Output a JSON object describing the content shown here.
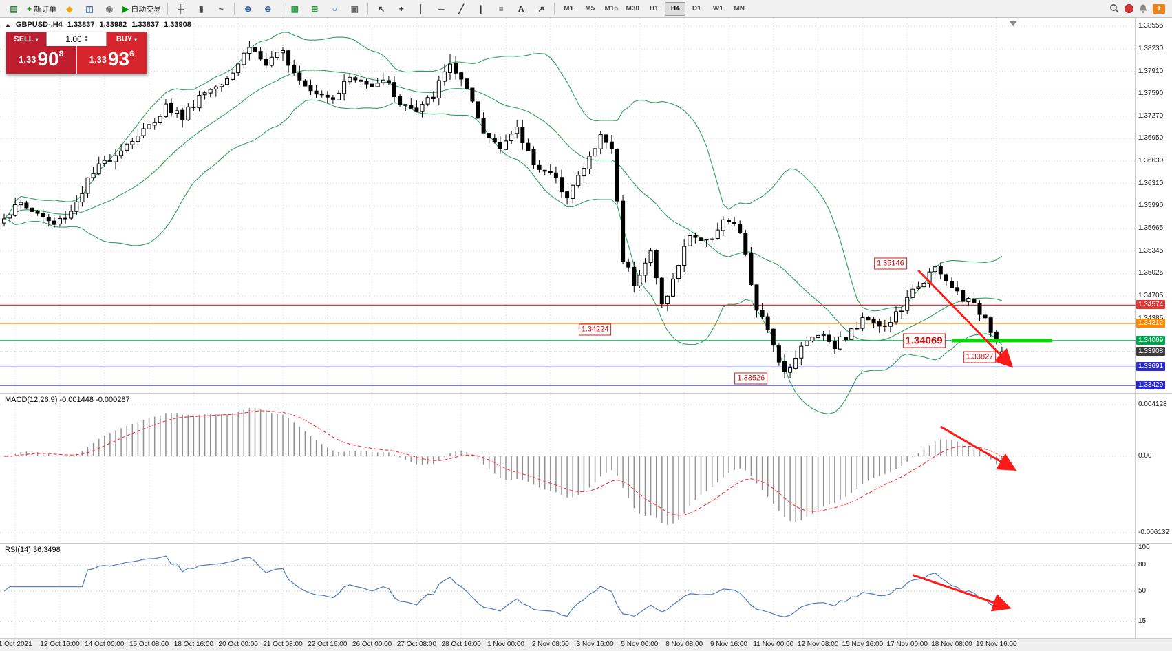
{
  "toolbar": {
    "groups": [
      {
        "name": "file",
        "buttons": [
          {
            "name": "new-chart",
            "glyph": "▤",
            "color": "#3a7d44"
          },
          {
            "name": "new-order",
            "glyph": "+",
            "color": "#00a000",
            "label": "新订单"
          },
          {
            "name": "metaeditor",
            "glyph": "◆",
            "color": "#eea500"
          },
          {
            "name": "depth-of-market",
            "glyph": "◫",
            "color": "#3a6ea5"
          },
          {
            "name": "mql5-community",
            "glyph": "◉",
            "color": "#777777"
          },
          {
            "name": "autotrading",
            "glyph": "▶",
            "color": "#00a000",
            "label": "自动交易"
          }
        ]
      },
      {
        "name": "chart-type",
        "buttons": [
          {
            "name": "bar-chart-mode",
            "glyph": "╫",
            "color": "#444444"
          },
          {
            "name": "candlestick-mode",
            "glyph": "▮",
            "color": "#444444"
          },
          {
            "name": "line-chart-mode",
            "glyph": "~",
            "color": "#444444"
          }
        ]
      },
      {
        "name": "zoom",
        "buttons": [
          {
            "name": "zoom-in",
            "glyph": "⊕",
            "color": "#2a5db0"
          },
          {
            "name": "zoom-out",
            "glyph": "⊖",
            "color": "#2a5db0"
          }
        ]
      },
      {
        "name": "windows",
        "buttons": [
          {
            "name": "tile-windows",
            "glyph": "▦",
            "color": "#2f9e44"
          },
          {
            "name": "indicators",
            "glyph": "⊞",
            "color": "#2f9e44"
          },
          {
            "name": "periods",
            "glyph": "○",
            "color": "#2a5db0"
          },
          {
            "name": "templates",
            "glyph": "▣",
            "color": "#666666"
          }
        ]
      },
      {
        "name": "draw",
        "buttons": [
          {
            "name": "cursor",
            "glyph": "↖",
            "color": "#333333"
          },
          {
            "name": "crosshair",
            "glyph": "+",
            "color": "#333333"
          },
          {
            "name": "vertical-line-tool",
            "glyph": "│",
            "color": "#333333"
          },
          {
            "name": "horizontal-line-tool",
            "glyph": "─",
            "color": "#333333"
          },
          {
            "name": "trendline-tool",
            "glyph": "╱",
            "color": "#333333"
          },
          {
            "name": "channel-tool",
            "glyph": "∥",
            "color": "#333333"
          },
          {
            "name": "fibonacci-tool",
            "glyph": "≡",
            "color": "#333333"
          },
          {
            "name": "text-tool",
            "glyph": "A",
            "color": "#333333"
          },
          {
            "name": "arrows-tool",
            "glyph": "↗",
            "color": "#333333"
          }
        ]
      }
    ],
    "timeframes": [
      {
        "label": "M1"
      },
      {
        "label": "M5"
      },
      {
        "label": "M15"
      },
      {
        "label": "M30"
      },
      {
        "label": "H1"
      },
      {
        "label": "H4",
        "active": true
      },
      {
        "label": "D1"
      },
      {
        "label": "W1"
      },
      {
        "label": "MN"
      }
    ],
    "notification_badge": "1"
  },
  "symbol_info": {
    "icon": "▲",
    "symbol": "GBPUSD-,H4",
    "open": "1.33837",
    "high": "1.33982",
    "low": "1.33837",
    "close": "1.33908"
  },
  "trade": {
    "sell_label": "SELL",
    "buy_label": "BUY",
    "volume": "1.00",
    "sell_price": {
      "prefix": "1.33",
      "big": "90",
      "sup": "8"
    },
    "buy_price": {
      "prefix": "1.33",
      "big": "93",
      "sup": "6"
    },
    "sell_color": "#bf1e2e",
    "buy_color": "#d6252d"
  },
  "chart_data": {
    "type": "candlestick",
    "symbol": "GBPUSD-",
    "timeframe": "H4",
    "bar_count": 180,
    "indicators": [
      "Bollinger Bands (20,2)",
      "MACD(12,26,9)",
      "RSI(14)"
    ],
    "colors": {
      "bollinger": "#2ca05a",
      "candle": "#000000",
      "macd_histogram": "#909090",
      "macd_signal": "#ff3030",
      "rsi_line": "#4d79bd",
      "trend_arrow": "#ff1a1a",
      "thick_level": "#00dc00"
    },
    "price_axis_labels": [
      {
        "text": "1.38555",
        "value": 1.38555
      },
      {
        "text": "1.38230",
        "value": 1.3823
      },
      {
        "text": "1.37910",
        "value": 1.3791
      },
      {
        "text": "1.37590",
        "value": 1.3759
      },
      {
        "text": "1.37270",
        "value": 1.3727
      },
      {
        "text": "1.36950",
        "value": 1.3695
      },
      {
        "text": "1.36630",
        "value": 1.3663
      },
      {
        "text": "1.36310",
        "value": 1.3631
      },
      {
        "text": "1.35990",
        "value": 1.3599
      },
      {
        "text": "1.35665",
        "value": 1.35665
      },
      {
        "text": "1.35345",
        "value": 1.35345
      },
      {
        "text": "1.35025",
        "value": 1.35025
      },
      {
        "text": "1.34705",
        "value": 1.34705
      },
      {
        "text": "1.34385",
        "value": 1.34385
      }
    ],
    "close_path_anchors": [
      [
        0,
        1.3585
      ],
      [
        3,
        1.3602
      ],
      [
        6,
        1.3588
      ],
      [
        9,
        1.3572
      ],
      [
        12,
        1.3592
      ],
      [
        15,
        1.3635
      ],
      [
        18,
        1.3662
      ],
      [
        22,
        1.3688
      ],
      [
        26,
        1.3712
      ],
      [
        29,
        1.3742
      ],
      [
        32,
        1.3726
      ],
      [
        35,
        1.3756
      ],
      [
        38,
        1.3772
      ],
      [
        41,
        1.3792
      ],
      [
        44,
        1.3828
      ],
      [
        47,
        1.38
      ],
      [
        50,
        1.3818
      ],
      [
        53,
        1.3782
      ],
      [
        56,
        1.3762
      ],
      [
        59,
        1.3756
      ],
      [
        62,
        1.3782
      ],
      [
        65,
        1.3772
      ],
      [
        68,
        1.3782
      ],
      [
        71,
        1.3747
      ],
      [
        74,
        1.3732
      ],
      [
        77,
        1.3757
      ],
      [
        80,
        1.3804
      ],
      [
        83,
        1.3762
      ],
      [
        86,
        1.3702
      ],
      [
        89,
        1.3687
      ],
      [
        92,
        1.3706
      ],
      [
        95,
        1.3662
      ],
      [
        98,
        1.3642
      ],
      [
        101,
        1.3617
      ],
      [
        104,
        1.3652
      ],
      [
        107,
        1.3698
      ],
      [
        109,
        1.3682
      ],
      [
        111,
        1.3525
      ],
      [
        113,
        1.3492
      ],
      [
        116,
        1.3532
      ],
      [
        118,
        1.3458
      ],
      [
        120,
        1.3492
      ],
      [
        123,
        1.356
      ],
      [
        126,
        1.3546
      ],
      [
        129,
        1.358
      ],
      [
        132,
        1.3562
      ],
      [
        135,
        1.3452
      ],
      [
        138,
        1.3402
      ],
      [
        140,
        1.3362
      ],
      [
        143,
        1.3396
      ],
      [
        146,
        1.342
      ],
      [
        149,
        1.3402
      ],
      [
        152,
        1.342
      ],
      [
        155,
        1.3442
      ],
      [
        158,
        1.3426
      ],
      [
        161,
        1.3452
      ],
      [
        164,
        1.3487
      ],
      [
        167,
        1.3508
      ],
      [
        170,
        1.3482
      ],
      [
        173,
        1.3462
      ],
      [
        176,
        1.3442
      ],
      [
        178,
        1.3408
      ],
      [
        179,
        1.3391
      ]
    ],
    "candle_overrides": {
      "44": {
        "h": 1.38345
      },
      "80": {
        "h": 1.38155
      },
      "140": {
        "l": 1.33526
      },
      "167": {
        "h": 1.35146
      },
      "179": {
        "o": 1.33837,
        "h": 1.33982,
        "l": 1.33837,
        "c": 1.33908
      }
    },
    "hlines": [
      {
        "text": "1.34574",
        "value": 1.34574,
        "color": "#e63535"
      },
      {
        "text": "1.34312",
        "value": 1.34312,
        "color": "#ff8a00"
      },
      {
        "text": "1.34069",
        "value": 1.34069,
        "color": "#00a64f"
      },
      {
        "text": "1.33691",
        "value": 1.33691,
        "color": "#2b2bd0"
      },
      {
        "text": "1.33429",
        "value": 1.33429,
        "color": "#2b2bd0"
      }
    ],
    "current_price_tag": {
      "text": "1.33908",
      "value": 1.33908,
      "bg": "#3d3d3d"
    },
    "thick_segment": {
      "value": 1.34069,
      "bar1": 170,
      "bar2": 188,
      "color": "#00dc00"
    },
    "annotations": [
      {
        "text": "1.35146",
        "bar": 159,
        "price": 1.3517
      },
      {
        "text": "1.34224",
        "bar": 106,
        "price": 1.34224
      },
      {
        "text": "1.34069",
        "bar": 165,
        "price": 1.34069,
        "large": true
      },
      {
        "text": "1.33827",
        "bar": 175,
        "price": 1.33827
      },
      {
        "text": "1.33526",
        "bar": 134,
        "price": 1.33526
      }
    ],
    "trend_arrows": {
      "main": {
        "bar1": 164,
        "price1": 1.3507,
        "bar2": 180.5,
        "price2": 1.3372
      },
      "macd": {
        "bar1": 168,
        "frac1": 0.22,
        "bar2": 181,
        "frac2": 0.5
      },
      "rsi": {
        "bar1": 163,
        "frac1": 0.33,
        "bar2": 180,
        "frac2": 0.67
      }
    },
    "time_labels": [
      {
        "bar": 2,
        "text": "1 Oct 2021"
      },
      {
        "bar": 10,
        "text": "12 Oct 16:00"
      },
      {
        "bar": 18,
        "text": "14 Oct 00:00"
      },
      {
        "bar": 26,
        "text": "15 Oct 08:00"
      },
      {
        "bar": 34,
        "text": "18 Oct 16:00"
      },
      {
        "bar": 42,
        "text": "20 Oct 00:00"
      },
      {
        "bar": 50,
        "text": "21 Oct 08:00"
      },
      {
        "bar": 58,
        "text": "22 Oct 16:00"
      },
      {
        "bar": 66,
        "text": "26 Oct 00:00"
      },
      {
        "bar": 74,
        "text": "27 Oct 08:00"
      },
      {
        "bar": 82,
        "text": "28 Oct 16:00"
      },
      {
        "bar": 90,
        "text": "1 Nov 00:00"
      },
      {
        "bar": 98,
        "text": "2 Nov 08:00"
      },
      {
        "bar": 106,
        "text": "3 Nov 16:00"
      },
      {
        "bar": 114,
        "text": "5 Nov 00:00"
      },
      {
        "bar": 122,
        "text": "8 Nov 08:00"
      },
      {
        "bar": 130,
        "text": "9 Nov 16:00"
      },
      {
        "bar": 138,
        "text": "11 Nov 00:00"
      },
      {
        "bar": 146,
        "text": "12 Nov 08:00"
      },
      {
        "bar": 154,
        "text": "15 Nov 16:00"
      },
      {
        "bar": 162,
        "text": "17 Nov 00:00"
      },
      {
        "bar": 170,
        "text": "18 Nov 08:00"
      },
      {
        "bar": 178,
        "text": "19 Nov 16:00"
      }
    ]
  },
  "macd": {
    "label": "MACD(12,26,9) -0.001448 -0.000287",
    "axis_labels": [
      "0.004128",
      "0.00",
      "-0.006132"
    ],
    "fast": 12,
    "slow": 26,
    "signal": 9
  },
  "rsi": {
    "label": "RSI(14) 36.3498",
    "axis_labels": [
      {
        "text": "100",
        "value": 100
      },
      {
        "text": "80",
        "value": 80
      },
      {
        "text": "50",
        "value": 50
      },
      {
        "text": "15",
        "value": 15
      }
    ],
    "period": 14
  }
}
